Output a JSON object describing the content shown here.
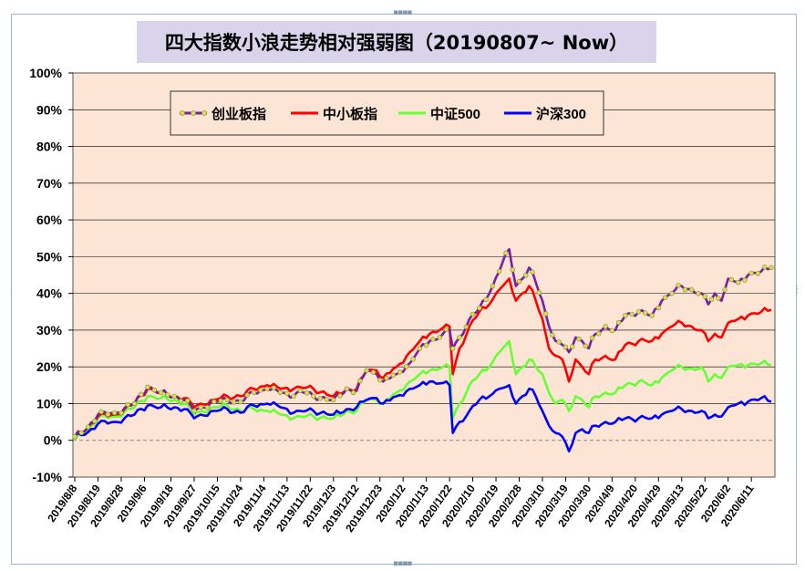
{
  "chart_data": {
    "type": "line",
    "title": "四大指数小浪走势相对强弱图（20190807~ Now）",
    "xlabel": "",
    "ylabel": "",
    "ylim": [
      -10,
      100
    ],
    "y_ticks": [
      "100%",
      "90%",
      "80%",
      "70%",
      "60%",
      "50%",
      "40%",
      "30%",
      "20%",
      "10%",
      "0%",
      "-10%"
    ],
    "y_tick_values": [
      100,
      90,
      80,
      70,
      60,
      50,
      40,
      30,
      20,
      10,
      0,
      -10
    ],
    "x_tick_labels": [
      "2019/8/8",
      "2019/8/19",
      "2019/8/28",
      "2019/9/6",
      "2019/9/18",
      "2019/9/27",
      "2019/10/15",
      "2019/10/24",
      "2019/11/4",
      "2019/11/13",
      "2019/11/22",
      "2019/12/3",
      "2019/12/12",
      "2019/12/23",
      "2020/1/2",
      "2020/1/13",
      "2020/1/22",
      "2020/2/10",
      "2020/2/19",
      "2020/2/28",
      "2020/3/10",
      "2020/3/19",
      "2020/3/30",
      "2020/4/9",
      "2020/4/20",
      "2020/4/29",
      "2020/5/13",
      "2020/5/22",
      "2020/6/2",
      "2020/6/11"
    ],
    "x_tick_index": [
      0,
      7,
      14,
      21,
      29,
      36,
      43,
      50,
      57,
      64,
      71,
      78,
      85,
      92,
      99,
      106,
      113,
      120,
      127,
      134,
      141,
      148,
      155,
      162,
      169,
      176,
      183,
      190,
      197,
      204
    ],
    "x_count": 211,
    "grid": true,
    "legend_position": "top-left",
    "series": [
      {
        "name": "创业板指",
        "color": "#7b1fa2",
        "marker": "circle",
        "marker_fill": "#d4e157",
        "keyframes": [
          [
            0,
            1
          ],
          [
            3,
            2.5
          ],
          [
            7,
            7
          ],
          [
            12,
            7.5
          ],
          [
            18,
            10
          ],
          [
            22,
            14.5
          ],
          [
            26,
            13
          ],
          [
            30,
            12
          ],
          [
            33,
            11
          ],
          [
            36,
            8
          ],
          [
            38,
            9
          ],
          [
            42,
            10.5
          ],
          [
            46,
            11
          ],
          [
            50,
            10.5
          ],
          [
            54,
            13
          ],
          [
            58,
            14
          ],
          [
            62,
            13
          ],
          [
            66,
            12
          ],
          [
            68,
            13.5
          ],
          [
            72,
            12
          ],
          [
            78,
            11
          ],
          [
            82,
            14
          ],
          [
            85,
            13.5
          ],
          [
            88,
            19
          ],
          [
            91,
            18
          ],
          [
            93,
            16
          ],
          [
            97,
            18
          ],
          [
            101,
            21
          ],
          [
            104,
            25
          ],
          [
            107,
            27
          ],
          [
            110,
            28
          ],
          [
            113,
            30
          ],
          [
            114,
            25
          ],
          [
            116,
            28
          ],
          [
            119,
            33
          ],
          [
            122,
            36
          ],
          [
            125,
            40
          ],
          [
            128,
            46
          ],
          [
            130,
            51
          ],
          [
            131,
            52
          ],
          [
            133,
            42
          ],
          [
            135,
            44
          ],
          [
            137,
            47
          ],
          [
            139,
            43
          ],
          [
            141,
            38
          ],
          [
            143,
            31
          ],
          [
            145,
            27
          ],
          [
            147,
            26
          ],
          [
            149,
            24
          ],
          [
            151,
            28
          ],
          [
            153,
            27
          ],
          [
            155,
            25
          ],
          [
            157,
            29
          ],
          [
            160,
            31
          ],
          [
            163,
            30
          ],
          [
            166,
            34
          ],
          [
            170,
            35
          ],
          [
            174,
            34
          ],
          [
            177,
            38
          ],
          [
            180,
            40
          ],
          [
            183,
            42
          ],
          [
            186,
            41
          ],
          [
            189,
            40
          ],
          [
            191,
            37
          ],
          [
            193,
            40
          ],
          [
            195,
            38
          ],
          [
            197,
            44
          ],
          [
            200,
            43
          ],
          [
            203,
            45
          ],
          [
            207,
            46
          ],
          [
            210,
            47
          ]
        ]
      },
      {
        "name": "中小板指",
        "color": "#ff0000",
        "keyframes": [
          [
            0,
            1
          ],
          [
            3,
            2.5
          ],
          [
            7,
            6.5
          ],
          [
            12,
            7
          ],
          [
            18,
            10
          ],
          [
            22,
            14
          ],
          [
            26,
            13
          ],
          [
            30,
            12
          ],
          [
            33,
            11.5
          ],
          [
            36,
            9
          ],
          [
            38,
            10
          ],
          [
            42,
            11
          ],
          [
            46,
            12
          ],
          [
            50,
            12
          ],
          [
            54,
            14
          ],
          [
            58,
            15
          ],
          [
            62,
            14
          ],
          [
            66,
            14
          ],
          [
            68,
            14.5
          ],
          [
            72,
            14
          ],
          [
            78,
            12
          ],
          [
            82,
            14
          ],
          [
            85,
            14
          ],
          [
            88,
            19
          ],
          [
            91,
            19
          ],
          [
            93,
            17
          ],
          [
            97,
            20
          ],
          [
            101,
            24
          ],
          [
            104,
            27
          ],
          [
            107,
            29
          ],
          [
            110,
            30
          ],
          [
            113,
            31
          ],
          [
            114,
            18
          ],
          [
            116,
            25
          ],
          [
            119,
            31
          ],
          [
            122,
            35
          ],
          [
            125,
            37
          ],
          [
            128,
            41
          ],
          [
            130,
            43
          ],
          [
            131,
            44
          ],
          [
            133,
            38
          ],
          [
            135,
            40
          ],
          [
            137,
            42
          ],
          [
            139,
            38
          ],
          [
            141,
            33
          ],
          [
            143,
            25
          ],
          [
            145,
            23
          ],
          [
            147,
            22
          ],
          [
            149,
            16
          ],
          [
            151,
            22
          ],
          [
            153,
            20
          ],
          [
            155,
            18
          ],
          [
            157,
            22
          ],
          [
            160,
            23
          ],
          [
            163,
            22
          ],
          [
            166,
            26
          ],
          [
            170,
            27
          ],
          [
            174,
            27
          ],
          [
            177,
            29
          ],
          [
            180,
            31
          ],
          [
            183,
            32
          ],
          [
            186,
            31
          ],
          [
            189,
            30
          ],
          [
            191,
            27
          ],
          [
            193,
            29
          ],
          [
            195,
            28
          ],
          [
            197,
            32
          ],
          [
            200,
            33
          ],
          [
            203,
            34
          ],
          [
            207,
            35
          ],
          [
            210,
            35.5
          ]
        ]
      },
      {
        "name": "中证500",
        "color": "#66ff33",
        "keyframes": [
          [
            0,
            0
          ],
          [
            3,
            2
          ],
          [
            7,
            6
          ],
          [
            12,
            6.5
          ],
          [
            18,
            9
          ],
          [
            22,
            12
          ],
          [
            26,
            11.5
          ],
          [
            30,
            11
          ],
          [
            33,
            10
          ],
          [
            36,
            7
          ],
          [
            38,
            8
          ],
          [
            42,
            9
          ],
          [
            46,
            9.5
          ],
          [
            50,
            8
          ],
          [
            54,
            8.5
          ],
          [
            58,
            8
          ],
          [
            62,
            7
          ],
          [
            66,
            6
          ],
          [
            68,
            6.5
          ],
          [
            72,
            6.5
          ],
          [
            78,
            6
          ],
          [
            82,
            8
          ],
          [
            85,
            8
          ],
          [
            88,
            11
          ],
          [
            91,
            11
          ],
          [
            93,
            10
          ],
          [
            97,
            13
          ],
          [
            101,
            16
          ],
          [
            104,
            18
          ],
          [
            107,
            19
          ],
          [
            110,
            19.5
          ],
          [
            113,
            20
          ],
          [
            114,
            6
          ],
          [
            116,
            10
          ],
          [
            119,
            15
          ],
          [
            122,
            18
          ],
          [
            125,
            20
          ],
          [
            128,
            24
          ],
          [
            130,
            26
          ],
          [
            131,
            27
          ],
          [
            133,
            18
          ],
          [
            135,
            20
          ],
          [
            137,
            22
          ],
          [
            139,
            20
          ],
          [
            141,
            18
          ],
          [
            143,
            13
          ],
          [
            145,
            10
          ],
          [
            147,
            11
          ],
          [
            149,
            8
          ],
          [
            151,
            12
          ],
          [
            153,
            11
          ],
          [
            155,
            9
          ],
          [
            157,
            12
          ],
          [
            160,
            13
          ],
          [
            163,
            13
          ],
          [
            166,
            15
          ],
          [
            170,
            16
          ],
          [
            174,
            15
          ],
          [
            177,
            17
          ],
          [
            180,
            19
          ],
          [
            183,
            20
          ],
          [
            186,
            19.5
          ],
          [
            189,
            20
          ],
          [
            191,
            16
          ],
          [
            193,
            18
          ],
          [
            195,
            17
          ],
          [
            197,
            20
          ],
          [
            200,
            20.5
          ],
          [
            203,
            20.5
          ],
          [
            207,
            21
          ],
          [
            210,
            20.5
          ]
        ]
      },
      {
        "name": "沪深300",
        "color": "#0000ff",
        "keyframes": [
          [
            0,
            1
          ],
          [
            3,
            1.5
          ],
          [
            7,
            4.5
          ],
          [
            12,
            5
          ],
          [
            18,
            7
          ],
          [
            22,
            9.5
          ],
          [
            26,
            9
          ],
          [
            30,
            9
          ],
          [
            33,
            8.5
          ],
          [
            36,
            6
          ],
          [
            38,
            7
          ],
          [
            42,
            8
          ],
          [
            46,
            8.5
          ],
          [
            50,
            7.5
          ],
          [
            54,
            9.5
          ],
          [
            58,
            10
          ],
          [
            62,
            9
          ],
          [
            66,
            7.5
          ],
          [
            68,
            8
          ],
          [
            72,
            8
          ],
          [
            78,
            7
          ],
          [
            82,
            8.5
          ],
          [
            85,
            9
          ],
          [
            88,
            11
          ],
          [
            91,
            11.5
          ],
          [
            93,
            10
          ],
          [
            97,
            12
          ],
          [
            101,
            14
          ],
          [
            104,
            15
          ],
          [
            107,
            16
          ],
          [
            110,
            15.5
          ],
          [
            113,
            15
          ],
          [
            114,
            2
          ],
          [
            116,
            5
          ],
          [
            119,
            8
          ],
          [
            122,
            11
          ],
          [
            125,
            12
          ],
          [
            128,
            14
          ],
          [
            130,
            14.5
          ],
          [
            131,
            15
          ],
          [
            133,
            10
          ],
          [
            135,
            12
          ],
          [
            137,
            14
          ],
          [
            139,
            12
          ],
          [
            141,
            8
          ],
          [
            143,
            4
          ],
          [
            145,
            2
          ],
          [
            147,
            1
          ],
          [
            149,
            -3
          ],
          [
            151,
            2
          ],
          [
            153,
            3
          ],
          [
            155,
            2
          ],
          [
            157,
            4
          ],
          [
            160,
            5
          ],
          [
            163,
            5
          ],
          [
            166,
            6
          ],
          [
            170,
            6
          ],
          [
            174,
            6
          ],
          [
            177,
            7
          ],
          [
            180,
            8
          ],
          [
            183,
            8.5
          ],
          [
            186,
            8
          ],
          [
            189,
            8
          ],
          [
            191,
            6
          ],
          [
            193,
            7
          ],
          [
            195,
            6.5
          ],
          [
            197,
            9
          ],
          [
            200,
            10
          ],
          [
            203,
            10.5
          ],
          [
            207,
            11.5
          ],
          [
            210,
            10.5
          ]
        ]
      }
    ]
  }
}
